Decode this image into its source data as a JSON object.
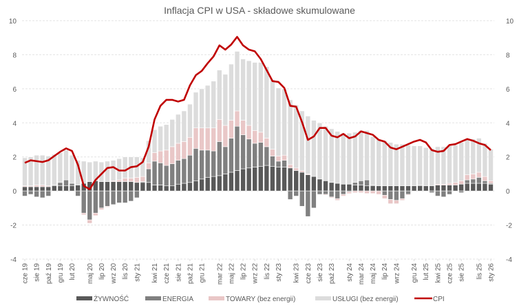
{
  "chart_data": {
    "type": "bar",
    "stacked": true,
    "title": "Inflacja CPI w USA - składowe skumulowane",
    "xlabel": "",
    "ylabel": "",
    "ylim": [
      -4,
      10
    ],
    "yticks": [
      -4,
      -2,
      0,
      2,
      4,
      6,
      8,
      10
    ],
    "grid": true,
    "legend_position": "bottom",
    "x_tick_labels": [
      {
        "index": 0,
        "label": "cze 19"
      },
      {
        "index": 2,
        "label": "sie 19"
      },
      {
        "index": 4,
        "label": "paź 19"
      },
      {
        "index": 6,
        "label": "gru 19"
      },
      {
        "index": 8,
        "label": "lut 20"
      },
      {
        "index": 11,
        "label": "maj 20"
      },
      {
        "index": 13,
        "label": "lip 20"
      },
      {
        "index": 15,
        "label": "wrz 20"
      },
      {
        "index": 17,
        "label": "lis 20"
      },
      {
        "index": 19,
        "label": "sty 21"
      },
      {
        "index": 22,
        "label": "kwi 21"
      },
      {
        "index": 24,
        "label": "cze 21"
      },
      {
        "index": 26,
        "label": "sie 21"
      },
      {
        "index": 28,
        "label": "paź 21"
      },
      {
        "index": 30,
        "label": "gru 21"
      },
      {
        "index": 33,
        "label": "mar 22"
      },
      {
        "index": 35,
        "label": "maj 22"
      },
      {
        "index": 37,
        "label": "lip 22"
      },
      {
        "index": 39,
        "label": "wrz 22"
      },
      {
        "index": 41,
        "label": "lis 22"
      },
      {
        "index": 43,
        "label": "sty 23"
      },
      {
        "index": 46,
        "label": "kwi 23"
      },
      {
        "index": 48,
        "label": "cze 23"
      },
      {
        "index": 50,
        "label": "sie 23"
      },
      {
        "index": 52,
        "label": "paź 23"
      },
      {
        "index": 55,
        "label": "sty 24"
      },
      {
        "index": 57,
        "label": "mar 24"
      },
      {
        "index": 59,
        "label": "maj 24"
      },
      {
        "index": 61,
        "label": "lip 24"
      },
      {
        "index": 63,
        "label": "wrz 24"
      },
      {
        "index": 66,
        "label": "gru 24"
      },
      {
        "index": 68,
        "label": "lut 25"
      },
      {
        "index": 70,
        "label": "kwi 25"
      },
      {
        "index": 72,
        "label": "cze 25"
      },
      {
        "index": 74,
        "label": "sie 25"
      },
      {
        "index": 77,
        "label": "lis 25"
      },
      {
        "index": 79,
        "label": "sty 26"
      }
    ],
    "series": [
      {
        "name": "ŻYWNOŚĆ",
        "type": "bar",
        "color": "#595959",
        "values": [
          0.25,
          0.25,
          0.25,
          0.25,
          0.25,
          0.3,
          0.3,
          0.3,
          0.3,
          0.35,
          0.45,
          0.55,
          0.6,
          0.55,
          0.55,
          0.55,
          0.55,
          0.55,
          0.55,
          0.5,
          0.5,
          0.5,
          0.35,
          0.35,
          0.3,
          0.3,
          0.4,
          0.45,
          0.5,
          0.6,
          0.7,
          0.8,
          0.85,
          0.9,
          1.0,
          1.1,
          1.2,
          1.3,
          1.35,
          1.4,
          1.45,
          1.5,
          1.45,
          1.4,
          1.4,
          1.35,
          1.2,
          1.1,
          0.95,
          0.85,
          0.7,
          0.6,
          0.5,
          0.45,
          0.4,
          0.4,
          0.35,
          0.35,
          0.3,
          0.3,
          0.3,
          0.3,
          0.3,
          0.3,
          0.3,
          0.3,
          0.3,
          0.3,
          0.3,
          0.3,
          0.35,
          0.35,
          0.35,
          0.35,
          0.4,
          0.45,
          0.45,
          0.45,
          0.45,
          0.4
        ]
      },
      {
        "name": "ENERGIA",
        "type": "bar",
        "color": "#808080",
        "values": [
          -0.3,
          -0.2,
          -0.35,
          -0.4,
          -0.3,
          0.05,
          0.2,
          0.35,
          0.15,
          -0.3,
          -1.3,
          -1.7,
          -1.3,
          -1.0,
          -0.9,
          -0.8,
          -0.7,
          -0.7,
          -0.6,
          -0.4,
          0.05,
          0.8,
          1.4,
          1.3,
          1.2,
          1.3,
          1.4,
          1.45,
          1.6,
          1.9,
          1.7,
          1.6,
          1.5,
          2.0,
          1.6,
          2.0,
          2.6,
          2.0,
          1.7,
          1.4,
          1.4,
          1.1,
          0.6,
          0.35,
          0.4,
          -0.5,
          -0.3,
          -0.9,
          -1.5,
          -1.0,
          -0.2,
          -0.2,
          -0.35,
          -0.45,
          -0.2,
          -0.05,
          0.15,
          0.25,
          0.35,
          0.05,
          0.0,
          -0.25,
          -0.5,
          -0.55,
          -0.45,
          -0.2,
          0.0,
          0.05,
          0.0,
          -0.1,
          -0.3,
          -0.35,
          -0.2,
          0.0,
          -0.1,
          0.2,
          0.25,
          0.35,
          0.15,
          0.05
        ]
      },
      {
        "name": "TOWARY (bez energii)",
        "type": "bar",
        "color": "#e9c7c7",
        "values": [
          0.05,
          0.05,
          0.1,
          0.1,
          0.05,
          0.0,
          0.0,
          0.0,
          0.0,
          0.0,
          -0.1,
          -0.2,
          -0.15,
          -0.1,
          -0.05,
          0.05,
          0.1,
          0.2,
          0.2,
          0.3,
          0.3,
          0.35,
          0.5,
          0.7,
          0.9,
          1.0,
          1.0,
          1.0,
          1.05,
          1.2,
          1.3,
          1.3,
          1.35,
          1.3,
          1.25,
          1.05,
          0.9,
          0.85,
          0.8,
          0.75,
          0.6,
          0.5,
          0.4,
          0.3,
          0.3,
          0.2,
          0.15,
          0.1,
          0.05,
          0.0,
          0.0,
          -0.05,
          -0.05,
          -0.1,
          -0.1,
          -0.1,
          -0.1,
          -0.1,
          -0.15,
          -0.15,
          -0.2,
          -0.2,
          -0.25,
          -0.2,
          -0.1,
          -0.05,
          0.0,
          0.0,
          0.0,
          0.0,
          0.05,
          0.05,
          0.1,
          0.15,
          0.2,
          0.3,
          0.3,
          0.3,
          0.25,
          0.15
        ]
      },
      {
        "name": "USŁUGI (bez energii)",
        "type": "bar",
        "color": "#dcdcdc",
        "values": [
          1.65,
          1.7,
          1.75,
          1.75,
          1.75,
          1.8,
          1.75,
          1.75,
          1.65,
          1.45,
          1.3,
          1.15,
          1.15,
          1.15,
          1.2,
          1.2,
          1.25,
          1.25,
          1.25,
          1.2,
          1.1,
          1.3,
          1.35,
          1.45,
          1.5,
          1.6,
          1.7,
          1.8,
          1.95,
          2.1,
          2.3,
          2.5,
          2.75,
          2.9,
          3.0,
          3.3,
          3.5,
          3.6,
          3.8,
          4.0,
          4.1,
          4.2,
          4.1,
          4.0,
          3.9,
          3.8,
          3.7,
          3.5,
          3.4,
          3.3,
          3.3,
          3.2,
          3.15,
          3.05,
          3.0,
          3.0,
          2.95,
          2.95,
          2.9,
          2.85,
          2.75,
          2.65,
          2.55,
          2.45,
          2.45,
          2.4,
          2.35,
          2.3,
          2.25,
          2.2,
          2.2,
          2.2,
          2.2,
          2.2,
          2.25,
          2.1,
          2.05,
          2.0,
          1.95,
          1.85
        ]
      },
      {
        "name": "CPI",
        "type": "line",
        "color": "#c00000",
        "values": [
          1.65,
          1.8,
          1.75,
          1.7,
          1.8,
          2.05,
          2.3,
          2.5,
          2.35,
          1.55,
          0.3,
          0.1,
          0.65,
          1.0,
          1.35,
          1.4,
          1.2,
          1.2,
          1.4,
          1.45,
          1.7,
          2.6,
          4.2,
          5.0,
          5.35,
          5.35,
          5.25,
          5.35,
          6.2,
          6.8,
          7.05,
          7.5,
          7.9,
          8.55,
          8.3,
          8.6,
          9.05,
          8.55,
          8.3,
          8.2,
          7.75,
          7.1,
          6.45,
          6.4,
          6.05,
          5.0,
          4.95,
          4.05,
          3.0,
          3.2,
          3.7,
          3.7,
          3.25,
          3.15,
          3.35,
          3.1,
          3.2,
          3.5,
          3.4,
          3.3,
          3.0,
          2.9,
          2.55,
          2.45,
          2.6,
          2.75,
          2.9,
          3.0,
          2.85,
          2.4,
          2.3,
          2.35,
          2.7,
          2.75,
          2.9,
          3.05,
          2.95,
          2.8,
          2.7,
          2.4
        ]
      }
    ]
  }
}
